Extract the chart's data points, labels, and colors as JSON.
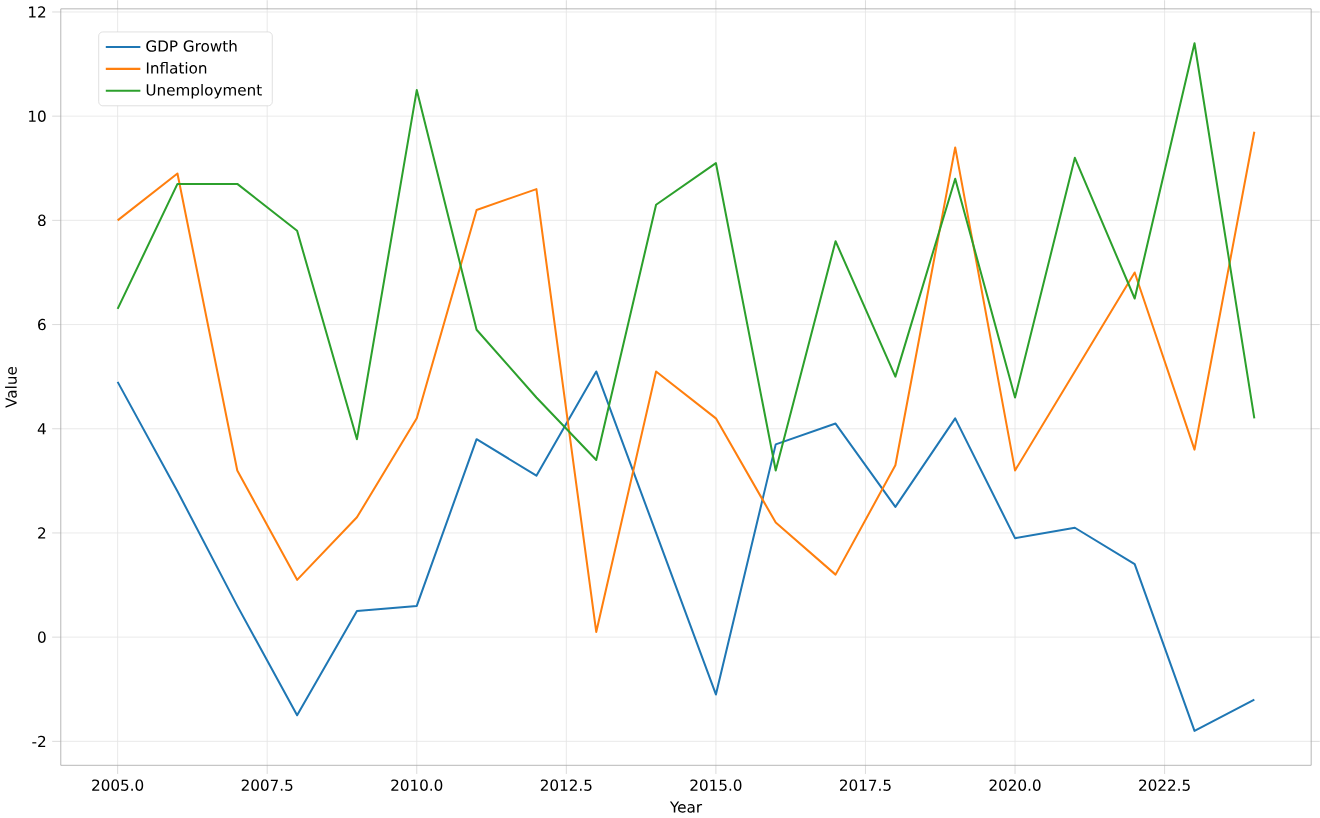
{
  "chart_data": {
    "type": "line",
    "xlabel": "Year",
    "ylabel": "Value",
    "x": [
      2005,
      2006,
      2007,
      2008,
      2009,
      2010,
      2011,
      2012,
      2013,
      2014,
      2015,
      2016,
      2017,
      2018,
      2019,
      2020,
      2021,
      2022,
      2023,
      2024
    ],
    "series": [
      {
        "name": "GDP Growth",
        "color": "#1f77b4",
        "values": [
          4.9,
          2.8,
          0.6,
          -1.5,
          0.5,
          0.6,
          3.8,
          3.1,
          5.1,
          2.0,
          -1.1,
          3.7,
          4.1,
          2.5,
          4.2,
          1.9,
          2.1,
          1.4,
          -1.8,
          -1.2
        ]
      },
      {
        "name": "Inflation",
        "color": "#ff7f0e",
        "values": [
          8.0,
          8.9,
          3.2,
          1.1,
          2.3,
          4.2,
          8.2,
          8.6,
          0.1,
          5.1,
          4.2,
          2.2,
          1.2,
          3.3,
          9.4,
          3.2,
          5.1,
          7.0,
          3.6,
          9.7
        ]
      },
      {
        "name": "Unemployment",
        "color": "#2ca02c",
        "values": [
          6.3,
          8.7,
          8.7,
          7.8,
          3.8,
          10.5,
          5.9,
          4.6,
          3.4,
          8.3,
          9.1,
          3.2,
          7.6,
          5.0,
          8.8,
          4.6,
          9.2,
          6.5,
          11.4,
          4.2
        ]
      }
    ],
    "xlim": [
      2004.05,
      2024.95
    ],
    "ylim": [
      -2.46,
      12.06
    ],
    "xticks": [
      {
        "value": 2005,
        "label": "2005.0"
      },
      {
        "value": 2007.5,
        "label": "2007.5"
      },
      {
        "value": 2010,
        "label": "2010.0"
      },
      {
        "value": 2012.5,
        "label": "2012.5"
      },
      {
        "value": 2015,
        "label": "2015.0"
      },
      {
        "value": 2017.5,
        "label": "2017.5"
      },
      {
        "value": 2020,
        "label": "2020.0"
      },
      {
        "value": 2022.5,
        "label": "2022.5"
      }
    ],
    "yticks": [
      -2,
      0,
      2,
      4,
      6,
      8,
      10,
      12
    ],
    "grid": true,
    "legend": "top left",
    "marker": "none",
    "line_style": "solid"
  }
}
